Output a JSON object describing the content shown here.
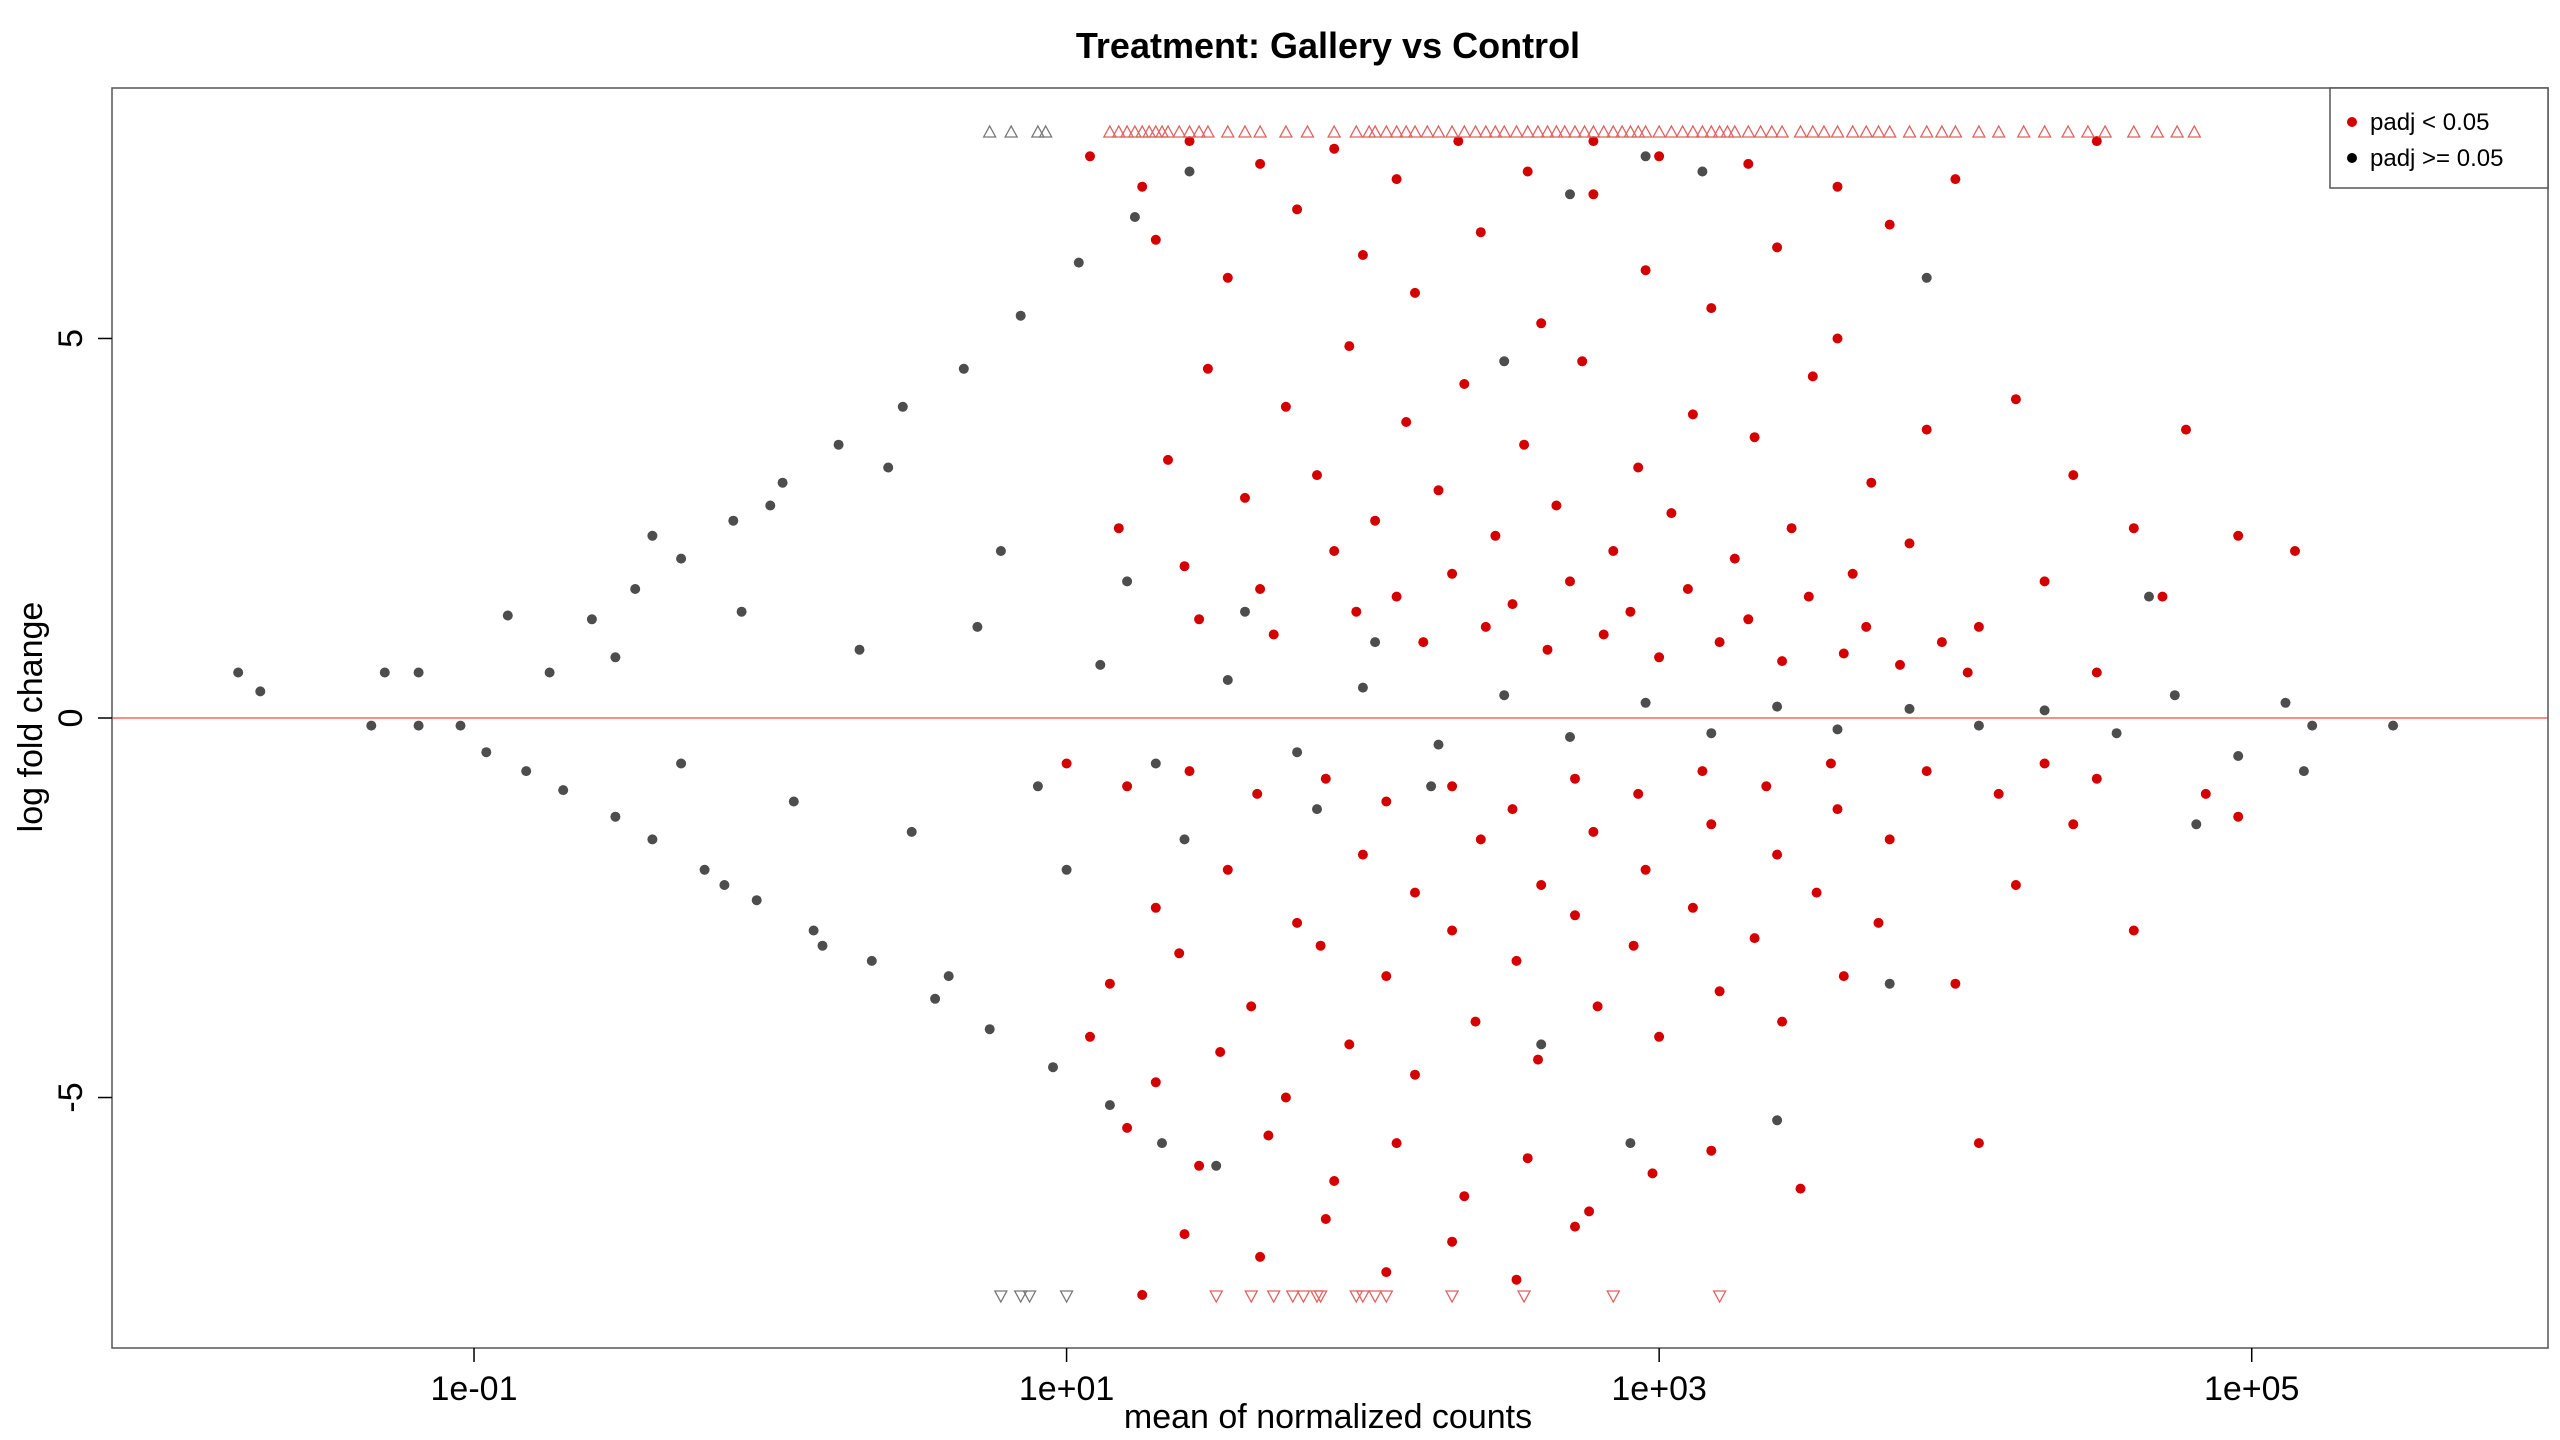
{
  "chart_data": {
    "type": "scatter",
    "title": "Treatment: Gallery vs Control",
    "xlabel": "mean of normalized counts",
    "ylabel": "log fold change",
    "x_scale": "log10",
    "xlim": [
      0.006,
      1000000
    ],
    "ylim": [
      -8.3,
      8.3
    ],
    "x_ticks": [
      0.1,
      10,
      1000,
      100000
    ],
    "x_tick_labels": [
      "1e-01",
      "1e+01",
      "1e+03",
      "1e+05"
    ],
    "y_ticks": [
      -5,
      0,
      5
    ],
    "y_tick_labels": [
      "-5",
      "0",
      "5"
    ],
    "hline": {
      "y": 0,
      "color": "#ff8a8a"
    },
    "grid": false,
    "legend": {
      "position": "top-right",
      "entries": [
        {
          "label": "padj < 0.05",
          "color": "#d40000"
        },
        {
          "label": "padj >= 0.05",
          "color": "#000000"
        }
      ]
    },
    "series": [
      {
        "name": "padj < 0.05",
        "color": "#d40000",
        "points": [
          [
            20,
            6.3
          ],
          [
            35,
            5.8
          ],
          [
            60,
            6.7
          ],
          [
            100,
            6.1
          ],
          [
            150,
            5.6
          ],
          [
            250,
            6.4
          ],
          [
            400,
            5.2
          ],
          [
            600,
            6.9
          ],
          [
            900,
            5.9
          ],
          [
            1500,
            5.4
          ],
          [
            2500,
            6.2
          ],
          [
            4000,
            5.0
          ],
          [
            6000,
            6.5
          ],
          [
            30,
            4.6
          ],
          [
            55,
            4.1
          ],
          [
            90,
            4.9
          ],
          [
            140,
            3.9
          ],
          [
            220,
            4.4
          ],
          [
            350,
            3.6
          ],
          [
            550,
            4.7
          ],
          [
            850,
            3.3
          ],
          [
            1300,
            4.0
          ],
          [
            2100,
            3.7
          ],
          [
            3300,
            4.5
          ],
          [
            5200,
            3.1
          ],
          [
            8000,
            3.8
          ],
          [
            22,
            3.4
          ],
          [
            40,
            2.9
          ],
          [
            70,
            3.2
          ],
          [
            110,
            2.6
          ],
          [
            180,
            3.0
          ],
          [
            280,
            2.4
          ],
          [
            450,
            2.8
          ],
          [
            700,
            2.2
          ],
          [
            1100,
            2.7
          ],
          [
            1800,
            2.1
          ],
          [
            2800,
            2.5
          ],
          [
            4500,
            1.9
          ],
          [
            7000,
            2.3
          ],
          [
            15,
            2.5
          ],
          [
            25,
            2.0
          ],
          [
            45,
            1.7
          ],
          [
            80,
            2.2
          ],
          [
            130,
            1.6
          ],
          [
            200,
            1.9
          ],
          [
            320,
            1.5
          ],
          [
            500,
            1.8
          ],
          [
            800,
            1.4
          ],
          [
            1250,
            1.7
          ],
          [
            2000,
            1.3
          ],
          [
            3200,
            1.6
          ],
          [
            5000,
            1.2
          ],
          [
            9000,
            1.0
          ],
          [
            28,
            1.3
          ],
          [
            50,
            1.1
          ],
          [
            95,
            1.4
          ],
          [
            160,
            1.0
          ],
          [
            260,
            1.2
          ],
          [
            420,
            0.9
          ],
          [
            650,
            1.1
          ],
          [
            1000,
            0.8
          ],
          [
            1600,
            1.0
          ],
          [
            2600,
            0.75
          ],
          [
            4200,
            0.85
          ],
          [
            6500,
            0.7
          ],
          [
            11000,
            0.6
          ],
          [
            12,
            7.4
          ],
          [
            18,
            7.0
          ],
          [
            26,
            7.6
          ],
          [
            45,
            7.3
          ],
          [
            80,
            7.5
          ],
          [
            130,
            7.1
          ],
          [
            210,
            7.6
          ],
          [
            360,
            7.2
          ],
          [
            600,
            7.6
          ],
          [
            1000,
            7.4
          ],
          [
            2000,
            7.3
          ],
          [
            4000,
            7.0
          ],
          [
            10000,
            7.1
          ],
          [
            30000,
            7.6
          ],
          [
            16000,
            4.2
          ],
          [
            25000,
            3.2
          ],
          [
            40000,
            2.5
          ],
          [
            60000,
            3.8
          ],
          [
            90000,
            2.4
          ],
          [
            140000,
            2.2
          ],
          [
            20000,
            1.8
          ],
          [
            50000,
            1.6
          ],
          [
            12000,
            1.2
          ],
          [
            30000,
            0.6
          ],
          [
            20,
            -2.5
          ],
          [
            35,
            -2.0
          ],
          [
            60,
            -2.7
          ],
          [
            100,
            -1.8
          ],
          [
            150,
            -2.3
          ],
          [
            250,
            -1.6
          ],
          [
            400,
            -2.2
          ],
          [
            600,
            -1.5
          ],
          [
            900,
            -2.0
          ],
          [
            1500,
            -1.4
          ],
          [
            2500,
            -1.8
          ],
          [
            4000,
            -1.2
          ],
          [
            6000,
            -1.6
          ],
          [
            14,
            -3.5
          ],
          [
            24,
            -3.1
          ],
          [
            42,
            -3.8
          ],
          [
            72,
            -3.0
          ],
          [
            120,
            -3.4
          ],
          [
            200,
            -2.8
          ],
          [
            330,
            -3.2
          ],
          [
            520,
            -2.6
          ],
          [
            820,
            -3.0
          ],
          [
            1300,
            -2.5
          ],
          [
            2100,
            -2.9
          ],
          [
            3400,
            -2.3
          ],
          [
            5500,
            -2.7
          ],
          [
            12,
            -4.2
          ],
          [
            20,
            -4.8
          ],
          [
            33,
            -4.4
          ],
          [
            55,
            -5.0
          ],
          [
            90,
            -4.3
          ],
          [
            150,
            -4.7
          ],
          [
            240,
            -4.0
          ],
          [
            390,
            -4.5
          ],
          [
            620,
            -3.8
          ],
          [
            1000,
            -4.2
          ],
          [
            1600,
            -3.6
          ],
          [
            2600,
            -4.0
          ],
          [
            4200,
            -3.4
          ],
          [
            16,
            -5.4
          ],
          [
            28,
            -5.9
          ],
          [
            48,
            -5.5
          ],
          [
            80,
            -6.1
          ],
          [
            130,
            -5.6
          ],
          [
            220,
            -6.3
          ],
          [
            360,
            -5.8
          ],
          [
            580,
            -6.5
          ],
          [
            950,
            -6.0
          ],
          [
            1500,
            -5.7
          ],
          [
            3000,
            -6.2
          ],
          [
            12000,
            -5.6
          ],
          [
            25,
            -6.8
          ],
          [
            45,
            -7.1
          ],
          [
            75,
            -6.6
          ],
          [
            120,
            -7.3
          ],
          [
            200,
            -6.9
          ],
          [
            330,
            -7.4
          ],
          [
            520,
            -6.7
          ],
          [
            18,
            -7.6
          ],
          [
            10000,
            -3.5
          ],
          [
            16000,
            -2.2
          ],
          [
            25000,
            -1.4
          ],
          [
            40000,
            -2.8
          ],
          [
            70000,
            -1.0
          ],
          [
            90000,
            -1.3
          ],
          [
            30000,
            -0.8
          ],
          [
            14000,
            -1.0
          ],
          [
            20000,
            -0.6
          ],
          [
            8000,
            -0.7
          ],
          [
            10,
            -0.6
          ],
          [
            16,
            -0.9
          ],
          [
            26,
            -0.7
          ],
          [
            44,
            -1.0
          ],
          [
            75,
            -0.8
          ],
          [
            120,
            -1.1
          ],
          [
            200,
            -0.9
          ],
          [
            320,
            -1.2
          ],
          [
            520,
            -0.8
          ],
          [
            850,
            -1.0
          ],
          [
            1400,
            -0.7
          ],
          [
            2300,
            -0.9
          ],
          [
            3800,
            -0.6
          ]
        ],
        "clipped_up_x": [
          14,
          15,
          16,
          17,
          18,
          19,
          20,
          21,
          22,
          24,
          26,
          28,
          30,
          35,
          40,
          45,
          55,
          65,
          80,
          95,
          105,
          110,
          120,
          130,
          140,
          150,
          165,
          180,
          200,
          220,
          240,
          260,
          280,
          300,
          330,
          360,
          390,
          420,
          450,
          480,
          520,
          560,
          600,
          650,
          700,
          750,
          800,
          850,
          900,
          1000,
          1100,
          1200,
          1300,
          1400,
          1500,
          1600,
          1700,
          1800,
          2000,
          2200,
          2400,
          2600,
          3000,
          3300,
          3600,
          4000,
          4500,
          5000,
          5500,
          6000,
          7000,
          8000,
          9000,
          10000,
          12000,
          14000,
          17000,
          20000,
          24000,
          28000,
          32000,
          40000,
          48000,
          56000,
          64000
        ],
        "clipped_down_x": [
          32,
          42,
          50,
          58,
          63,
          70,
          72,
          95,
          100,
          110,
          120,
          200,
          350,
          700,
          1600
        ]
      },
      {
        "name": "padj >= 0.05",
        "color": "#4d4d4d",
        "points": [
          [
            0.016,
            0.6
          ],
          [
            0.019,
            0.35
          ],
          [
            0.045,
            -0.1
          ],
          [
            0.05,
            0.6
          ],
          [
            0.065,
            0.6
          ],
          [
            0.065,
            -0.1
          ],
          [
            0.09,
            -0.1
          ],
          [
            0.11,
            -0.45
          ],
          [
            0.13,
            1.35
          ],
          [
            0.15,
            -0.7
          ],
          [
            0.18,
            0.6
          ],
          [
            0.2,
            -0.95
          ],
          [
            0.25,
            1.3
          ],
          [
            0.3,
            -1.3
          ],
          [
            0.35,
            1.7
          ],
          [
            0.4,
            -1.6
          ],
          [
            0.5,
            2.1
          ],
          [
            0.6,
            -2.0
          ],
          [
            0.75,
            2.6
          ],
          [
            0.9,
            -2.4
          ],
          [
            1.1,
            3.1
          ],
          [
            1.4,
            -2.8
          ],
          [
            1.7,
            3.6
          ],
          [
            2.2,
            -3.2
          ],
          [
            2.8,
            4.1
          ],
          [
            3.6,
            -3.7
          ],
          [
            4.5,
            4.6
          ],
          [
            5.5,
            -4.1
          ],
          [
            7,
            5.3
          ],
          [
            9,
            -4.6
          ],
          [
            11,
            6.0
          ],
          [
            14,
            -5.1
          ],
          [
            17,
            6.6
          ],
          [
            21,
            -5.6
          ],
          [
            26,
            7.2
          ],
          [
            32,
            -5.9
          ],
          [
            0.3,
            0.8
          ],
          [
            0.5,
            -0.6
          ],
          [
            0.8,
            1.4
          ],
          [
            1.2,
            -1.1
          ],
          [
            2,
            0.9
          ],
          [
            3,
            -1.5
          ],
          [
            5,
            1.2
          ],
          [
            8,
            -0.9
          ],
          [
            13,
            0.7
          ],
          [
            20,
            -0.6
          ],
          [
            35,
            0.5
          ],
          [
            60,
            -0.45
          ],
          [
            100,
            0.4
          ],
          [
            180,
            -0.35
          ],
          [
            300,
            0.3
          ],
          [
            500,
            -0.25
          ],
          [
            900,
            0.2
          ],
          [
            1500,
            -0.2
          ],
          [
            2500,
            0.15
          ],
          [
            4000,
            -0.15
          ],
          [
            7000,
            0.12
          ],
          [
            12000,
            -0.1
          ],
          [
            20000,
            0.1
          ],
          [
            35000,
            -0.2
          ],
          [
            55000,
            0.3
          ],
          [
            90000,
            -0.5
          ],
          [
            130000,
            0.2
          ],
          [
            160000,
            -0.1
          ],
          [
            300000,
            -0.1
          ],
          [
            150000,
            -0.7
          ],
          [
            65000,
            -1.4
          ],
          [
            45000,
            1.6
          ],
          [
            0.4,
            2.4
          ],
          [
            0.7,
            -2.2
          ],
          [
            1.0,
            2.8
          ],
          [
            1.5,
            -3.0
          ],
          [
            2.5,
            3.3
          ],
          [
            4,
            -3.4
          ],
          [
            6,
            2.2
          ],
          [
            10,
            -2.0
          ],
          [
            16,
            1.8
          ],
          [
            25,
            -1.6
          ],
          [
            40,
            1.4
          ],
          [
            70,
            -1.2
          ],
          [
            110,
            1.0
          ],
          [
            170,
            -0.9
          ],
          [
            300,
            4.7
          ],
          [
            500,
            6.9
          ],
          [
            900,
            7.4
          ],
          [
            1400,
            7.2
          ],
          [
            8000,
            5.8
          ],
          [
            6000,
            -3.5
          ],
          [
            800,
            -5.6
          ],
          [
            400,
            -4.3
          ],
          [
            2500,
            -5.3
          ]
        ],
        "clipped_up_x": [
          5.5,
          6.5,
          8,
          8.5
        ],
        "clipped_down_x": [
          6,
          7,
          7.5,
          10
        ]
      }
    ]
  }
}
